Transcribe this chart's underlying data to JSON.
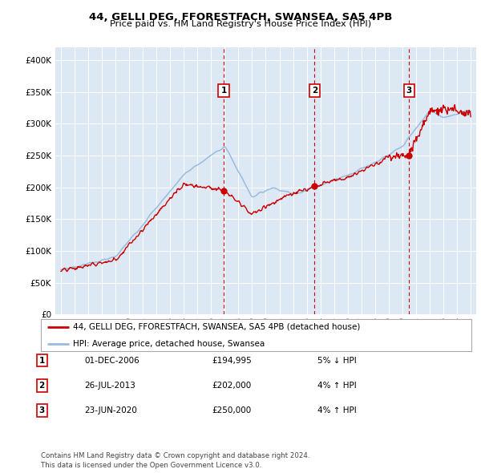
{
  "title": "44, GELLI DEG, FFORESTFACH, SWANSEA, SA5 4PB",
  "subtitle": "Price paid vs. HM Land Registry's House Price Index (HPI)",
  "bg_color": "#dce9f5",
  "hpi_color": "#99bbdd",
  "price_color": "#cc0000",
  "vline_color": "#cc0000",
  "transactions": [
    {
      "label": "1",
      "date_num": 2006.92,
      "price": 194995
    },
    {
      "label": "2",
      "date_num": 2013.57,
      "price": 202000
    },
    {
      "label": "3",
      "date_num": 2020.48,
      "price": 250000
    }
  ],
  "transaction_table": [
    [
      "1",
      "01-DEC-2006",
      "£194,995",
      "5% ↓ HPI"
    ],
    [
      "2",
      "26-JUL-2013",
      "£202,000",
      "4% ↑ HPI"
    ],
    [
      "3",
      "23-JUN-2020",
      "£250,000",
      "4% ↑ HPI"
    ]
  ],
  "legend_label_red": "44, GELLI DEG, FFORESTFACH, SWANSEA, SA5 4PB (detached house)",
  "legend_label_blue": "HPI: Average price, detached house, Swansea",
  "footer": "Contains HM Land Registry data © Crown copyright and database right 2024.\nThis data is licensed under the Open Government Licence v3.0.",
  "ylim": [
    0,
    420000
  ],
  "yticks": [
    0,
    50000,
    100000,
    150000,
    200000,
    250000,
    300000,
    350000,
    400000
  ],
  "ytick_labels": [
    "£0",
    "£50K",
    "£100K",
    "£150K",
    "£200K",
    "£250K",
    "£300K",
    "£350K",
    "£400K"
  ],
  "xlim_start": 1994.6,
  "xlim_end": 2025.4,
  "xticks": [
    1995,
    1996,
    1997,
    1998,
    1999,
    2000,
    2001,
    2002,
    2003,
    2004,
    2005,
    2006,
    2007,
    2008,
    2009,
    2010,
    2011,
    2012,
    2013,
    2014,
    2015,
    2016,
    2017,
    2018,
    2019,
    2020,
    2021,
    2022,
    2023,
    2024,
    2025
  ]
}
